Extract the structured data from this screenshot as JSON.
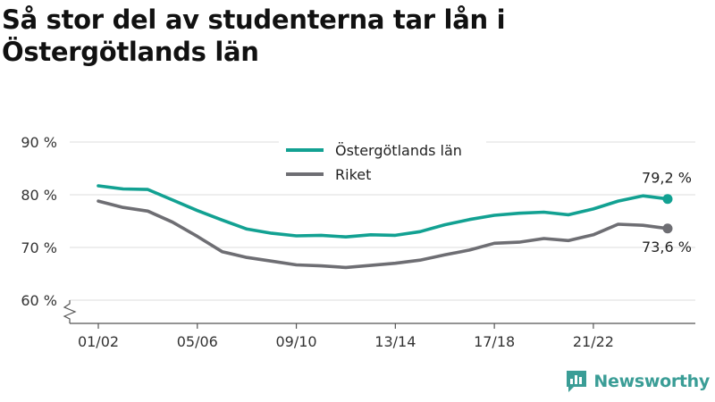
{
  "chart_data": {
    "type": "line",
    "title": "Så stor del av studenterna tar lån i Östergötlands län",
    "x": [
      "01/02",
      "02/03",
      "03/04",
      "04/05",
      "05/06",
      "06/07",
      "07/08",
      "08/09",
      "09/10",
      "10/11",
      "11/12",
      "12/13",
      "13/14",
      "14/15",
      "15/16",
      "16/17",
      "17/18",
      "18/19",
      "19/20",
      "20/21",
      "21/22",
      "22/23",
      "23/24",
      "24/25"
    ],
    "x_tick_labels": [
      "01/02",
      "05/06",
      "09/10",
      "13/14",
      "17/18",
      "21/22"
    ],
    "y_ticks": [
      {
        "value": 60,
        "label": "60 %"
      },
      {
        "value": 70,
        "label": "70 %"
      },
      {
        "value": 80,
        "label": "80 %"
      },
      {
        "value": 90,
        "label": "90 %"
      }
    ],
    "ylim": [
      58,
      90
    ],
    "axis_break": true,
    "grid": true,
    "legend_position": "top-center",
    "series": [
      {
        "name": "Östergötlands län",
        "color": "#12a192",
        "values": [
          81.7,
          81.1,
          81.0,
          79.0,
          77.0,
          75.2,
          73.5,
          72.7,
          72.2,
          72.3,
          72.0,
          72.4,
          72.3,
          73.0,
          74.3,
          75.3,
          76.1,
          76.5,
          76.7,
          76.2,
          77.3,
          78.8,
          79.8,
          79.2
        ],
        "end_label": "79,2 %"
      },
      {
        "name": "Riket",
        "color": "#6e6e73",
        "values": [
          78.8,
          77.6,
          76.9,
          74.8,
          72.1,
          69.2,
          68.1,
          67.4,
          66.7,
          66.5,
          66.2,
          66.6,
          67.0,
          67.6,
          68.6,
          69.5,
          70.8,
          71.0,
          71.7,
          71.3,
          72.4,
          74.4,
          74.2,
          73.6
        ],
        "end_label": "73,6 %"
      }
    ]
  },
  "brand": {
    "name": "Newsworthy",
    "icon": "bar-chart-logo-icon",
    "color": "#3a9d96"
  }
}
